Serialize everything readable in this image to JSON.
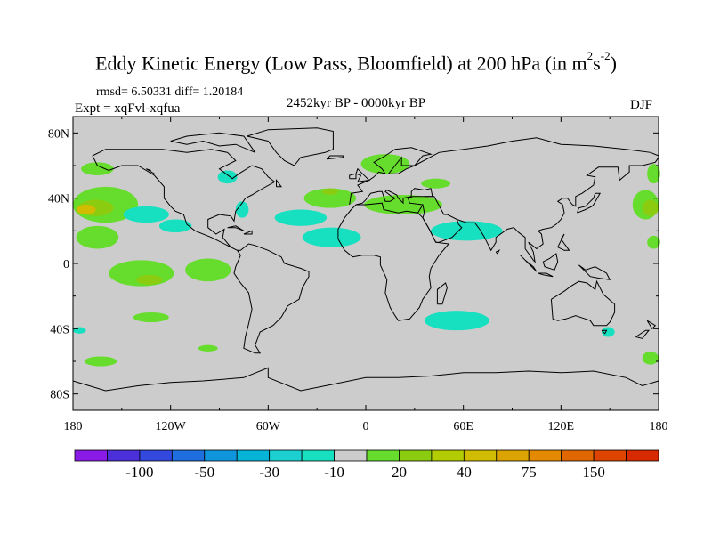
{
  "title_main": "Eddy Kinetic Energy (Low Pass, Bloomfield) at 200 hPa (in m",
  "title_sup1": "2",
  "title_s": "s",
  "title_sup2": "-2",
  "title_end": ")",
  "rmsd_text": "rmsd= 6.50331 diff= 1.20184",
  "expt_text": "Expt = xqFvl-xqfua",
  "period_text": "2452kyr BP - 0000kyr BP",
  "season_text": "DJF",
  "chart_data": {
    "type": "heatmap",
    "title": "Eddy Kinetic Energy (Low Pass, Bloomfield) at 200 hPa (in m^2 s^-2)",
    "xlabel": "",
    "ylabel": "",
    "xlim": [
      -180,
      180
    ],
    "ylim": [
      -90,
      90
    ],
    "x_ticks": [
      -180,
      -120,
      -60,
      0,
      60,
      120,
      180
    ],
    "x_tick_labels": [
      "180",
      "120W",
      "60W",
      "0",
      "60E",
      "120E",
      "180"
    ],
    "y_ticks": [
      80,
      40,
      0,
      -40,
      -80
    ],
    "y_tick_labels": [
      "80N",
      "40N",
      "0",
      "40S",
      "80S"
    ],
    "background_category": "-10 to 10",
    "colorbar": {
      "colors": [
        "#8a1ae6",
        "#4b2fd8",
        "#3348dc",
        "#1f6ee0",
        "#0f95dc",
        "#06b4d8",
        "#1ccfd0",
        "#17e0c0",
        "#cccccc",
        "#66dd2c",
        "#8ccc10",
        "#b2cc00",
        "#d2bc00",
        "#dca400",
        "#e48a00",
        "#e06600",
        "#dc4400",
        "#d82a00"
      ],
      "labels": [
        "-100",
        "-50",
        "-30",
        "-10",
        "20",
        "40",
        "75",
        "150"
      ],
      "label_boundaries": [
        2,
        4,
        6,
        8,
        10,
        12,
        14,
        16
      ]
    },
    "regions": [
      {
        "level": "10 to 20",
        "lon": -165,
        "lat": 58,
        "rlon": 10,
        "rlat": 4
      },
      {
        "level": "10 to 20",
        "lon": -160,
        "lat": 36,
        "rlon": 20,
        "rlat": 11
      },
      {
        "level": "20 to 30",
        "lon": -166,
        "lat": 34,
        "rlon": 11,
        "rlat": 5
      },
      {
        "level": "40 to 50",
        "lon": -172,
        "lat": 33,
        "rlon": 6,
        "rlat": 3
      },
      {
        "level": "10 to 20",
        "lon": -165,
        "lat": 16,
        "rlon": 13,
        "rlat": 7
      },
      {
        "level": "10 to 20",
        "lon": -138,
        "lat": -6,
        "rlon": 20,
        "rlat": 8
      },
      {
        "level": "20 to 30",
        "lon": -133,
        "lat": -10,
        "rlon": 8,
        "rlat": 3
      },
      {
        "level": "10 to 20",
        "lon": -97,
        "lat": -4,
        "rlon": 14,
        "rlat": 7
      },
      {
        "level": "10 to 20",
        "lon": -132,
        "lat": -33,
        "rlon": 11,
        "rlat": 3
      },
      {
        "level": "10 to 20",
        "lon": -97,
        "lat": -52,
        "rlon": 6,
        "rlat": 2
      },
      {
        "level": "10 to 20",
        "lon": -163,
        "lat": -60,
        "rlon": 10,
        "rlat": 3
      },
      {
        "level": "10 to 20",
        "lon": 12,
        "lat": 61,
        "rlon": 15,
        "rlat": 6
      },
      {
        "level": "10 to 20",
        "lon": 43,
        "lat": 49,
        "rlon": 9,
        "rlat": 3
      },
      {
        "level": "10 to 20",
        "lon": 23,
        "lat": 36,
        "rlon": 24,
        "rlat": 6
      },
      {
        "level": "10 to 20",
        "lon": -22,
        "lat": 40,
        "rlon": 16,
        "rlat": 6
      },
      {
        "level": "20 to 30",
        "lon": -22,
        "lat": 44,
        "rlon": 5,
        "rlat": 2
      },
      {
        "level": "10 to 20",
        "lon": 172,
        "lat": 36,
        "rlon": 8,
        "rlat": 9
      },
      {
        "level": "20 to 30",
        "lon": 175,
        "lat": 34,
        "rlon": 5,
        "rlat": 5
      },
      {
        "level": "10 to 20",
        "lon": 177,
        "lat": 55,
        "rlon": 4,
        "rlat": 6
      },
      {
        "level": "10 to 20",
        "lon": 177,
        "lat": 13,
        "rlon": 4,
        "rlat": 4
      },
      {
        "level": "10 to 20",
        "lon": 175,
        "lat": -58,
        "rlon": 5,
        "rlat": 4
      },
      {
        "level": "-20 to -10",
        "lon": -85,
        "lat": 53,
        "rlon": 6,
        "rlat": 4
      },
      {
        "level": "-20 to -10",
        "lon": -76,
        "lat": 33,
        "rlon": 4,
        "rlat": 5
      },
      {
        "level": "-20 to -10",
        "lon": -135,
        "lat": 30,
        "rlon": 14,
        "rlat": 5
      },
      {
        "level": "-20 to -10",
        "lon": -117,
        "lat": 23,
        "rlon": 10,
        "rlat": 4
      },
      {
        "level": "-20 to -10",
        "lon": -40,
        "lat": 28,
        "rlon": 16,
        "rlat": 5
      },
      {
        "level": "-20 to -10",
        "lon": -21,
        "lat": 16,
        "rlon": 18,
        "rlat": 6
      },
      {
        "level": "-20 to -10",
        "lon": 62,
        "lat": 20,
        "rlon": 22,
        "rlat": 6
      },
      {
        "level": "-20 to -10",
        "lon": 56,
        "lat": -35,
        "rlon": 20,
        "rlat": 6
      },
      {
        "level": "-20 to -10",
        "lon": 149,
        "lat": -42,
        "rlon": 4,
        "rlat": 3
      },
      {
        "level": "-20 to -10",
        "lon": -176,
        "lat": -41,
        "rlon": 4,
        "rlat": 2
      }
    ],
    "level_colors": {
      "-20 to -10": "#17e0c0",
      "10 to 20": "#66dd2c",
      "20 to 30": "#8ccc10",
      "40 to 50": "#d2bc00"
    }
  }
}
